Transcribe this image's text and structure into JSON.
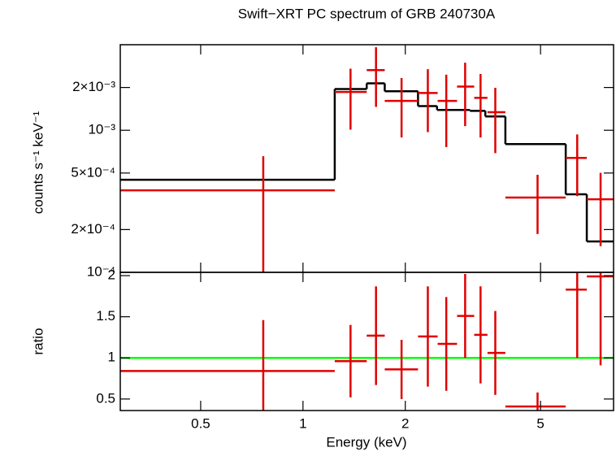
{
  "chart_data": [
    {
      "type": "errorbar",
      "title": "Swift−XRT PC spectrum of GRB 240730A",
      "ylabel": "counts s⁻¹ keV⁻¹",
      "xlog": true,
      "ylog": true,
      "xlim": [
        0.29,
        8.2
      ],
      "ylim": [
        0.0001,
        0.004
      ],
      "xticks": [
        0.5,
        1,
        2,
        5
      ],
      "xtick_labels": false,
      "yticks": [
        {
          "value": 0.0001,
          "label": "10⁻⁴"
        },
        {
          "value": 0.0002,
          "label": "2×10⁻⁴"
        },
        {
          "value": 0.0005,
          "label": "5×10⁻⁴"
        },
        {
          "value": 0.001,
          "label": "10⁻³"
        },
        {
          "value": 0.002,
          "label": "2×10⁻³"
        }
      ],
      "model": {
        "color": "#000000",
        "bins": [
          0.29,
          1.24,
          1.54,
          1.74,
          2.18,
          2.48,
          3.1,
          3.44,
          3.94,
          5.93,
          6.84,
          8.2
        ],
        "values": [
          0.000448,
          0.00195,
          0.00214,
          0.00188,
          0.00148,
          0.00139,
          0.00137,
          0.00125,
          0.000799,
          0.000354,
          0.000165
        ]
      },
      "data": {
        "color": "#e00000",
        "x": [
          0.764,
          1.38,
          1.64,
          1.95,
          2.33,
          2.64,
          3.0,
          3.33,
          3.68,
          4.9,
          6.41,
          7.51
        ],
        "x_low": [
          0.29,
          1.24,
          1.54,
          1.74,
          2.18,
          2.49,
          2.84,
          3.19,
          3.49,
          3.94,
          5.93,
          6.84
        ],
        "x_high": [
          1.24,
          1.54,
          1.74,
          2.18,
          2.49,
          2.84,
          3.19,
          3.49,
          3.94,
          5.93,
          6.84,
          8.2
        ],
        "values": [
          0.000378,
          0.00186,
          0.00265,
          0.00161,
          0.00183,
          0.00161,
          0.00203,
          0.00169,
          0.00134,
          0.000336,
          0.000639,
          0.000327
        ],
        "errors": [
          0.000279,
          0.00085,
          0.00119,
          0.00072,
          0.00086,
          0.00085,
          0.00096,
          0.0008,
          0.00065,
          0.00015,
          0.000295,
          0.000174
        ]
      }
    },
    {
      "type": "errorbar",
      "ylabel": "ratio",
      "xlabel": "Energy (keV)",
      "xlog": true,
      "ylog": false,
      "xlim": [
        0.29,
        8.2
      ],
      "ylim": [
        0.36,
        2.04
      ],
      "xticks": [
        0.5,
        1,
        2,
        5
      ],
      "xtick_labels": true,
      "yticks": [
        0.5,
        1,
        1.5,
        2
      ],
      "reference_line": {
        "value": 1,
        "color": "#00ff00"
      },
      "data": {
        "color": "#e00000",
        "x": [
          0.764,
          1.38,
          1.64,
          1.95,
          2.33,
          2.64,
          3.0,
          3.33,
          3.68,
          4.9,
          6.41,
          7.51
        ],
        "x_low": [
          0.29,
          1.24,
          1.54,
          1.74,
          2.18,
          2.49,
          2.84,
          3.19,
          3.49,
          3.94,
          5.93,
          6.84
        ],
        "x_high": [
          1.24,
          1.54,
          1.74,
          2.18,
          2.49,
          2.84,
          3.19,
          3.49,
          3.94,
          5.93,
          6.84,
          8.2
        ],
        "values": [
          0.84,
          0.96,
          1.27,
          0.86,
          1.26,
          1.17,
          1.51,
          1.28,
          1.06,
          0.41,
          1.83,
          1.99
        ],
        "errors": [
          0.62,
          0.44,
          0.6,
          0.36,
          0.61,
          0.57,
          0.51,
          0.59,
          0.51,
          0.17,
          0.83,
          1.08
        ]
      }
    }
  ]
}
